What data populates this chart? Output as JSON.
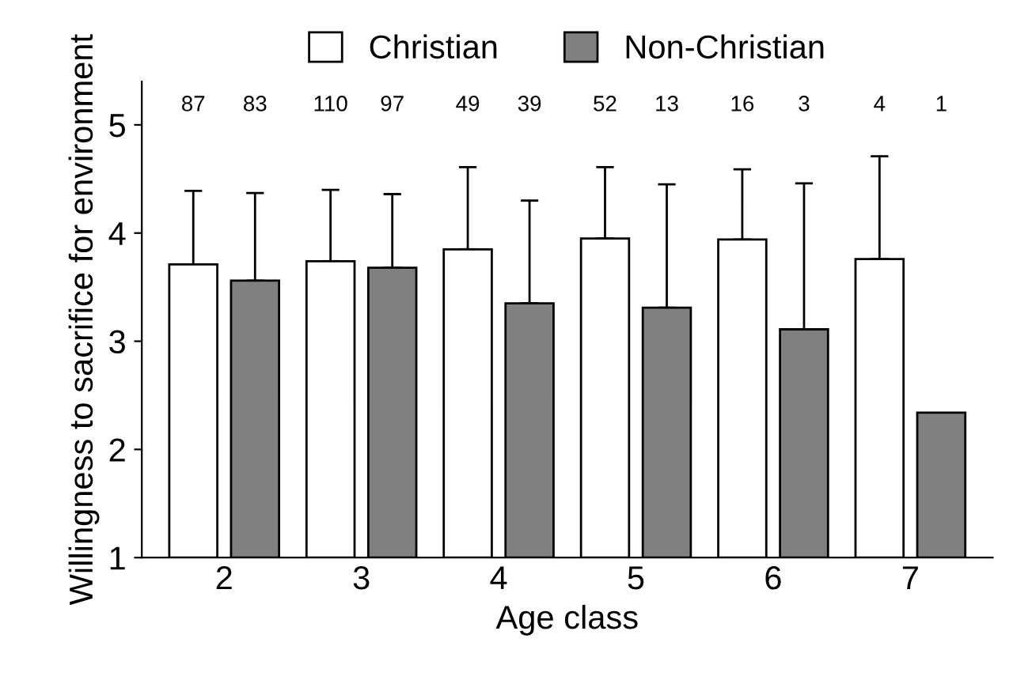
{
  "chart_data": {
    "type": "bar",
    "xlabel": "Age class",
    "ylabel": "Willingness to sacrifice for environment",
    "categories": [
      "2",
      "3",
      "4",
      "5",
      "6",
      "7"
    ],
    "series": [
      {
        "name": "Christian",
        "color": "#ffffff",
        "values": [
          3.71,
          3.74,
          3.85,
          3.95,
          3.94,
          3.76
        ],
        "errors": [
          [
            3.71,
            4.39
          ],
          [
            3.74,
            4.4
          ],
          [
            3.85,
            4.61
          ],
          [
            3.95,
            4.61
          ],
          [
            3.94,
            4.59
          ],
          [
            3.76,
            4.71
          ]
        ]
      },
      {
        "name": "Non-Christian",
        "color": "#808080",
        "values": [
          3.56,
          3.68,
          3.35,
          3.31,
          3.11,
          2.34
        ],
        "errors": [
          [
            3.56,
            4.37
          ],
          [
            3.68,
            4.36
          ],
          [
            3.35,
            4.3
          ],
          [
            3.31,
            4.45
          ],
          [
            3.11,
            4.46
          ],
          null
        ]
      }
    ],
    "annotations": [
      "87",
      "83",
      "110",
      "97",
      "49",
      "39",
      "52",
      "13",
      "16",
      "3",
      "4",
      "1"
    ],
    "ylim": [
      1,
      5.4
    ],
    "yticks": [
      1,
      2,
      3,
      4,
      5
    ],
    "grid": false,
    "legend": "top"
  }
}
